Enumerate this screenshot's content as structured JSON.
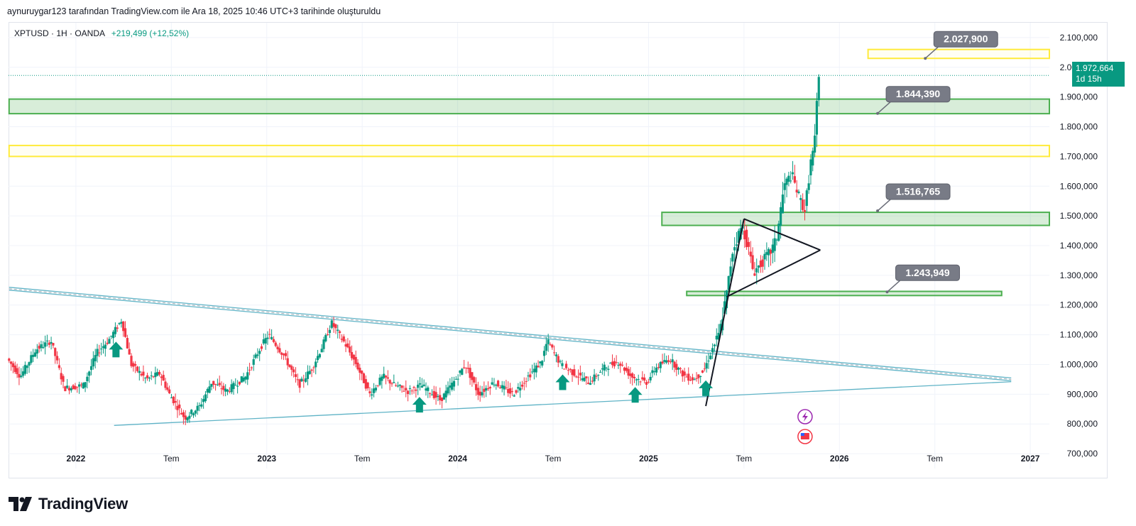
{
  "caption": "aynuruygar123 tarafından TradingView.com ile Ara 18, 2025 10:46 UTC+3 tarihinde oluşturuldu",
  "legend": {
    "symbol": "XPTUSD · 1H · OANDA",
    "change": "+219,499 (+12,52%)"
  },
  "last_price": {
    "value": "1.972,664",
    "countdown": "1d 15h"
  },
  "brand": "TradingView",
  "colors": {
    "up": "#089981",
    "down": "#f23645",
    "zone_green": "#4caf50",
    "zone_yellow": "#ffeb3b",
    "channel": "#5fb3c6"
  },
  "chart_data": {
    "type": "candlestick",
    "y_axis": {
      "range": [
        650,
        2150
      ],
      "ticks": [
        "2.100,000",
        "2.000,000",
        "1.900,000",
        "1.800,000",
        "1.700,000",
        "1.600,000",
        "1.500,000",
        "1.400,000",
        "1.300,000",
        "1.200,000",
        "1.100,000",
        "1.000,000",
        "900,000",
        "800,000",
        "700,000"
      ]
    },
    "x_axis": {
      "ticks": [
        {
          "label": "2022",
          "t": 2022.0,
          "bold": true
        },
        {
          "label": "Tem",
          "t": 2022.5,
          "bold": false
        },
        {
          "label": "2023",
          "t": 2023.0,
          "bold": true
        },
        {
          "label": "Tem",
          "t": 2023.5,
          "bold": false
        },
        {
          "label": "2024",
          "t": 2024.0,
          "bold": true
        },
        {
          "label": "Tem",
          "t": 2024.5,
          "bold": false
        },
        {
          "label": "2025",
          "t": 2025.0,
          "bold": true
        },
        {
          "label": "Tem",
          "t": 2025.5,
          "bold": false
        },
        {
          "label": "2026",
          "t": 2026.0,
          "bold": true
        },
        {
          "label": "Tem",
          "t": 2026.5,
          "bold": false
        },
        {
          "label": "2027",
          "t": 2027.0,
          "bold": true
        }
      ]
    },
    "price_path": [
      [
        2021.65,
        1020
      ],
      [
        2021.72,
        960
      ],
      [
        2021.8,
        1050
      ],
      [
        2021.88,
        1080
      ],
      [
        2021.95,
        920
      ],
      [
        2022.05,
        930
      ],
      [
        2022.12,
        1040
      ],
      [
        2022.18,
        1080
      ],
      [
        2022.25,
        1150
      ],
      [
        2022.3,
        1000
      ],
      [
        2022.38,
        950
      ],
      [
        2022.45,
        970
      ],
      [
        2022.5,
        900
      ],
      [
        2022.58,
        820
      ],
      [
        2022.66,
        860
      ],
      [
        2022.72,
        940
      ],
      [
        2022.8,
        910
      ],
      [
        2022.9,
        960
      ],
      [
        2022.98,
        1060
      ],
      [
        2023.02,
        1100
      ],
      [
        2023.1,
        1030
      ],
      [
        2023.18,
        930
      ],
      [
        2023.25,
        990
      ],
      [
        2023.3,
        1060
      ],
      [
        2023.35,
        1140
      ],
      [
        2023.42,
        1070
      ],
      [
        2023.48,
        1000
      ],
      [
        2023.55,
        900
      ],
      [
        2023.62,
        960
      ],
      [
        2023.68,
        930
      ],
      [
        2023.75,
        910
      ],
      [
        2023.82,
        930
      ],
      [
        2023.92,
        880
      ],
      [
        2024.0,
        950
      ],
      [
        2024.05,
        1000
      ],
      [
        2024.12,
        900
      ],
      [
        2024.2,
        940
      ],
      [
        2024.3,
        900
      ],
      [
        2024.38,
        960
      ],
      [
        2024.45,
        1010
      ],
      [
        2024.48,
        1080
      ],
      [
        2024.55,
        1000
      ],
      [
        2024.62,
        970
      ],
      [
        2024.7,
        940
      ],
      [
        2024.78,
        990
      ],
      [
        2024.85,
        1010
      ],
      [
        2024.92,
        960
      ],
      [
        2025.0,
        940
      ],
      [
        2025.05,
        990
      ],
      [
        2025.12,
        1020
      ],
      [
        2025.2,
        960
      ],
      [
        2025.25,
        950
      ],
      [
        2025.3,
        980
      ],
      [
        2025.35,
        1060
      ],
      [
        2025.38,
        1100
      ],
      [
        2025.42,
        1240
      ],
      [
        2025.45,
        1380
      ],
      [
        2025.5,
        1470
      ],
      [
        2025.53,
        1400
      ],
      [
        2025.56,
        1310
      ],
      [
        2025.6,
        1340
      ],
      [
        2025.65,
        1380
      ],
      [
        2025.68,
        1420
      ],
      [
        2025.72,
        1600
      ],
      [
        2025.76,
        1640
      ],
      [
        2025.8,
        1560
      ],
      [
        2025.83,
        1520
      ],
      [
        2025.86,
        1680
      ],
      [
        2025.88,
        1740
      ],
      [
        2025.9,
        1960
      ]
    ],
    "horizontal_zones": [
      {
        "color": "yellow",
        "y": [
          2030,
          2060
        ],
        "t": [
          2026.15,
          2027.1
        ]
      },
      {
        "color": "green",
        "y": [
          1844,
          1893
        ],
        "t": [
          2021.65,
          2027.1
        ]
      },
      {
        "color": "yellow",
        "y": [
          1700,
          1737
        ],
        "t": [
          2021.65,
          2027.1
        ]
      },
      {
        "color": "green",
        "y": [
          1468,
          1512
        ],
        "t": [
          2025.07,
          2027.1
        ]
      },
      {
        "color": "green",
        "y": [
          1232,
          1246
        ],
        "t": [
          2025.2,
          2026.85
        ]
      }
    ],
    "price_labels": [
      {
        "text": "2.027,900",
        "anchor": [
          2026.45,
          2030
        ]
      },
      {
        "text": "1.844,390",
        "anchor": [
          2026.2,
          1845
        ]
      },
      {
        "text": "1.516,765",
        "anchor": [
          2026.2,
          1517
        ]
      },
      {
        "text": "1.243,949",
        "anchor": [
          2026.25,
          1244
        ]
      }
    ],
    "lines": [
      {
        "name": "channel-upper",
        "color": "channel",
        "points": [
          [
            2021.65,
            1255
          ],
          [
            2026.9,
            950
          ]
        ]
      },
      {
        "name": "channel-support",
        "color": "channel",
        "points": [
          [
            2022.2,
            795
          ],
          [
            2026.9,
            942
          ]
        ]
      },
      {
        "name": "impulse-leg",
        "color": "black",
        "points": [
          [
            2025.3,
            860
          ],
          [
            2025.5,
            1490
          ]
        ]
      },
      {
        "name": "triangle-top",
        "color": "black",
        "points": [
          [
            2025.5,
            1490
          ],
          [
            2025.9,
            1385
          ]
        ]
      },
      {
        "name": "triangle-bottom",
        "color": "black",
        "points": [
          [
            2025.41,
            1228
          ],
          [
            2025.9,
            1385
          ]
        ]
      }
    ],
    "support_arrows": [
      2022.21,
      2023.8,
      2024.55,
      2024.93,
      2025.3
    ]
  }
}
